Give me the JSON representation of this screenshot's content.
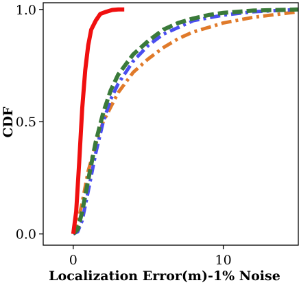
{
  "chart_data": {
    "type": "line",
    "xlabel": "Localization Error(m)-1% Noise",
    "ylabel": "CDF",
    "xlim": [
      -2,
      15
    ],
    "ylim": [
      -0.05,
      1.03
    ],
    "x_ticks": [
      0,
      10
    ],
    "x_tick_labels": [
      "0",
      "10"
    ],
    "y_ticks": [
      0.0,
      0.5,
      1.0
    ],
    "y_tick_labels": [
      "0.0",
      "0.5",
      "1.0"
    ],
    "grid": false,
    "legend": "none",
    "series": [
      {
        "color": "#f01010",
        "style": "solid",
        "x": [
          0,
          0.2,
          0.4,
          0.6,
          0.8,
          1.0,
          1.2,
          1.5,
          1.8,
          2.2,
          2.6,
          3.0,
          3.4
        ],
        "y": [
          0.0,
          0.1,
          0.32,
          0.56,
          0.73,
          0.84,
          0.91,
          0.95,
          0.98,
          0.99,
          0.998,
          1.0,
          1.0
        ]
      },
      {
        "color": "#3a7a3a",
        "style": "dashed",
        "x": [
          0,
          0.3,
          0.6,
          1.0,
          1.5,
          2.0,
          2.5,
          3.0,
          4.0,
          5.0,
          6.0,
          7.0,
          8.0,
          9.0,
          10.0,
          12.0,
          15.0
        ],
        "y": [
          0.0,
          0.02,
          0.1,
          0.24,
          0.41,
          0.54,
          0.64,
          0.71,
          0.8,
          0.86,
          0.91,
          0.94,
          0.96,
          0.975,
          0.985,
          0.995,
          1.0
        ]
      },
      {
        "color": "#4a4ef0",
        "style": "dashdot",
        "x": [
          0,
          0.3,
          0.6,
          1.0,
          1.5,
          2.0,
          2.5,
          3.0,
          4.0,
          5.0,
          6.0,
          7.0,
          8.0,
          10.0,
          12.0,
          15.0
        ],
        "y": [
          0.0,
          0.01,
          0.06,
          0.19,
          0.36,
          0.5,
          0.6,
          0.67,
          0.77,
          0.84,
          0.89,
          0.92,
          0.95,
          0.975,
          0.99,
          1.0
        ]
      },
      {
        "color": "#e07a2a",
        "style": "dashdot",
        "x": [
          0,
          0.3,
          0.6,
          1.0,
          1.5,
          2.0,
          3.0,
          4.0,
          5.0,
          6.0,
          7.0,
          8.0,
          9.0,
          10.0,
          12.0,
          15.0
        ],
        "y": [
          0.0,
          0.05,
          0.14,
          0.28,
          0.4,
          0.5,
          0.63,
          0.72,
          0.78,
          0.83,
          0.87,
          0.9,
          0.92,
          0.94,
          0.965,
          0.99
        ]
      }
    ]
  }
}
